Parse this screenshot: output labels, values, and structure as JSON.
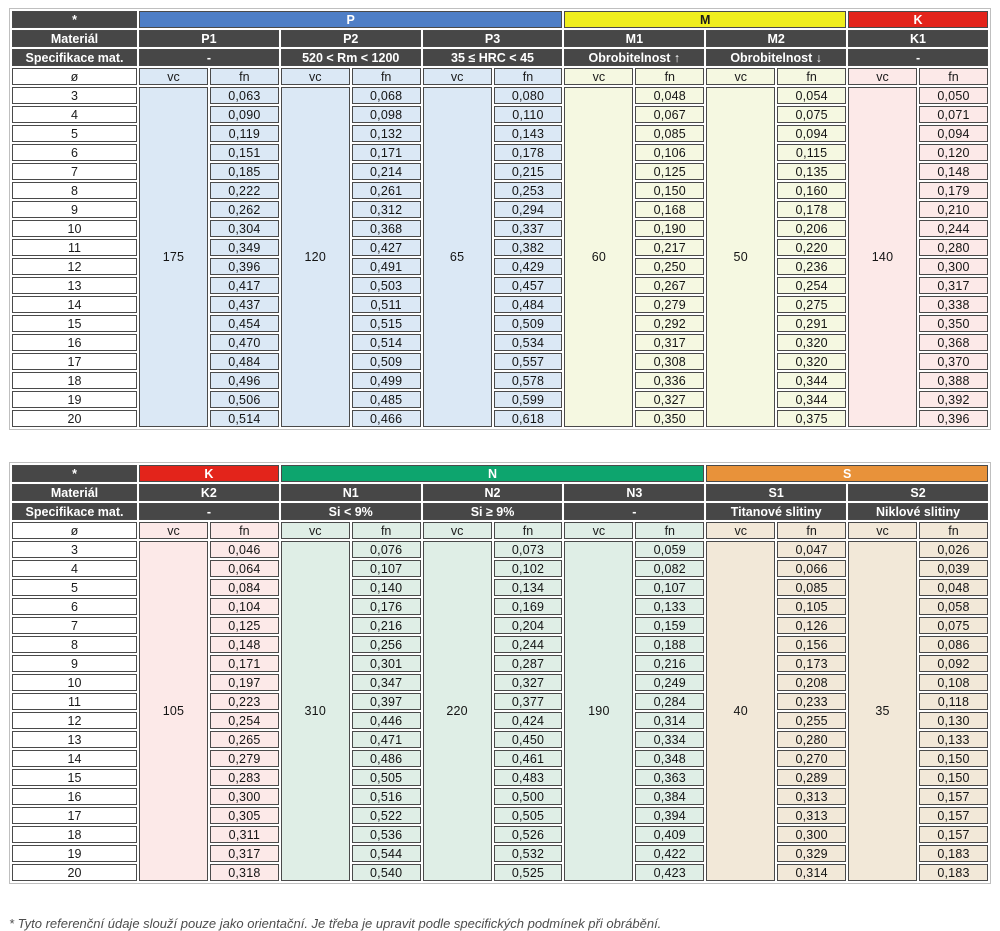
{
  "labels": {
    "star": "*",
    "material": "Materiál",
    "spec": "Specifikace mat.",
    "diameter": "ø",
    "vc": "vc",
    "fn": "fn"
  },
  "diameters": [
    "3",
    "4",
    "5",
    "6",
    "7",
    "8",
    "9",
    "10",
    "11",
    "12",
    "13",
    "14",
    "15",
    "16",
    "17",
    "18",
    "19",
    "20"
  ],
  "tables": [
    {
      "groups": [
        {
          "name": "P",
          "color": "#4e7ec6",
          "text_color": "#ffffff",
          "tint": "#dbe8f5",
          "span": 3
        },
        {
          "name": "M",
          "color": "#f0ee1e",
          "text_color": "#1a1a1a",
          "tint": "#f5f8e1",
          "span": 2
        },
        {
          "name": "K",
          "color": "#e3241b",
          "text_color": "#ffffff",
          "tint": "#fce9e8",
          "span": 1
        }
      ],
      "columns": [
        {
          "id": "P1",
          "spec": "-",
          "group": 0,
          "vc": "175",
          "fn": [
            "0,063",
            "0,090",
            "0,119",
            "0,151",
            "0,185",
            "0,222",
            "0,262",
            "0,304",
            "0,349",
            "0,396",
            "0,417",
            "0,437",
            "0,454",
            "0,470",
            "0,484",
            "0,496",
            "0,506",
            "0,514"
          ]
        },
        {
          "id": "P2",
          "spec": "520 < Rm < 1200",
          "group": 0,
          "vc": "120",
          "fn": [
            "0,068",
            "0,098",
            "0,132",
            "0,171",
            "0,214",
            "0,261",
            "0,312",
            "0,368",
            "0,427",
            "0,491",
            "0,503",
            "0,511",
            "0,515",
            "0,514",
            "0,509",
            "0,499",
            "0,485",
            "0,466"
          ]
        },
        {
          "id": "P3",
          "spec": "35 ≤ HRC < 45",
          "group": 0,
          "vc": "65",
          "fn": [
            "0,080",
            "0,110",
            "0,143",
            "0,178",
            "0,215",
            "0,253",
            "0,294",
            "0,337",
            "0,382",
            "0,429",
            "0,457",
            "0,484",
            "0,509",
            "0,534",
            "0,557",
            "0,578",
            "0,599",
            "0,618"
          ]
        },
        {
          "id": "M1",
          "spec": "Obrobitelnost ↑",
          "group": 1,
          "vc": "60",
          "fn": [
            "0,048",
            "0,067",
            "0,085",
            "0,106",
            "0,125",
            "0,150",
            "0,168",
            "0,190",
            "0,217",
            "0,250",
            "0,267",
            "0,279",
            "0,292",
            "0,317",
            "0,308",
            "0,336",
            "0,327",
            "0,350"
          ]
        },
        {
          "id": "M2",
          "spec": "Obrobitelnost ↓",
          "group": 1,
          "vc": "50",
          "fn": [
            "0,054",
            "0,075",
            "0,094",
            "0,115",
            "0,135",
            "0,160",
            "0,178",
            "0,206",
            "0,220",
            "0,236",
            "0,254",
            "0,275",
            "0,291",
            "0,320",
            "0,320",
            "0,344",
            "0,344",
            "0,375"
          ]
        },
        {
          "id": "K1",
          "spec": "-",
          "group": 2,
          "vc": "140",
          "fn": [
            "0,050",
            "0,071",
            "0,094",
            "0,120",
            "0,148",
            "0,179",
            "0,210",
            "0,244",
            "0,280",
            "0,300",
            "0,317",
            "0,338",
            "0,350",
            "0,368",
            "0,370",
            "0,388",
            "0,392",
            "0,396"
          ]
        }
      ]
    },
    {
      "groups": [
        {
          "name": "K",
          "color": "#e3241b",
          "text_color": "#ffffff",
          "tint": "#fce9e8",
          "span": 1
        },
        {
          "name": "N",
          "color": "#0da56e",
          "text_color": "#ffffff",
          "tint": "#dfeee6",
          "span": 3
        },
        {
          "name": "S",
          "color": "#e8923a",
          "text_color": "#ffffff",
          "tint": "#f2e8d8",
          "span": 2
        }
      ],
      "columns": [
        {
          "id": "K2",
          "spec": "-",
          "group": 0,
          "vc": "105",
          "fn": [
            "0,046",
            "0,064",
            "0,084",
            "0,104",
            "0,125",
            "0,148",
            "0,171",
            "0,197",
            "0,223",
            "0,254",
            "0,265",
            "0,279",
            "0,283",
            "0,300",
            "0,305",
            "0,311",
            "0,317",
            "0,318"
          ]
        },
        {
          "id": "N1",
          "spec": "Si < 9%",
          "group": 1,
          "vc": "310",
          "fn": [
            "0,076",
            "0,107",
            "0,140",
            "0,176",
            "0,216",
            "0,256",
            "0,301",
            "0,347",
            "0,397",
            "0,446",
            "0,471",
            "0,486",
            "0,505",
            "0,516",
            "0,522",
            "0,536",
            "0,544",
            "0,540"
          ]
        },
        {
          "id": "N2",
          "spec": "Si ≥ 9%",
          "group": 1,
          "vc": "220",
          "fn": [
            "0,073",
            "0,102",
            "0,134",
            "0,169",
            "0,204",
            "0,244",
            "0,287",
            "0,327",
            "0,377",
            "0,424",
            "0,450",
            "0,461",
            "0,483",
            "0,500",
            "0,505",
            "0,526",
            "0,532",
            "0,525"
          ]
        },
        {
          "id": "N3",
          "spec": "-",
          "group": 1,
          "vc": "190",
          "fn": [
            "0,059",
            "0,082",
            "0,107",
            "0,133",
            "0,159",
            "0,188",
            "0,216",
            "0,249",
            "0,284",
            "0,314",
            "0,334",
            "0,348",
            "0,363",
            "0,384",
            "0,394",
            "0,409",
            "0,422",
            "0,423"
          ]
        },
        {
          "id": "S1",
          "spec": "Titanové slitiny",
          "group": 2,
          "vc": "40",
          "fn": [
            "0,047",
            "0,066",
            "0,085",
            "0,105",
            "0,126",
            "0,156",
            "0,173",
            "0,208",
            "0,233",
            "0,255",
            "0,280",
            "0,270",
            "0,289",
            "0,313",
            "0,313",
            "0,300",
            "0,329",
            "0,314"
          ]
        },
        {
          "id": "S2",
          "spec": "Niklové slitiny",
          "group": 2,
          "vc": "35",
          "fn": [
            "0,026",
            "0,039",
            "0,048",
            "0,058",
            "0,075",
            "0,086",
            "0,092",
            "0,108",
            "0,118",
            "0,130",
            "0,133",
            "0,150",
            "0,150",
            "0,157",
            "0,157",
            "0,157",
            "0,183",
            "0,183"
          ]
        }
      ]
    }
  ],
  "footnote": "* Tyto referenční údaje slouží pouze jako orientační. Je třeba je upravit podle specifických podmínek při obrábění."
}
